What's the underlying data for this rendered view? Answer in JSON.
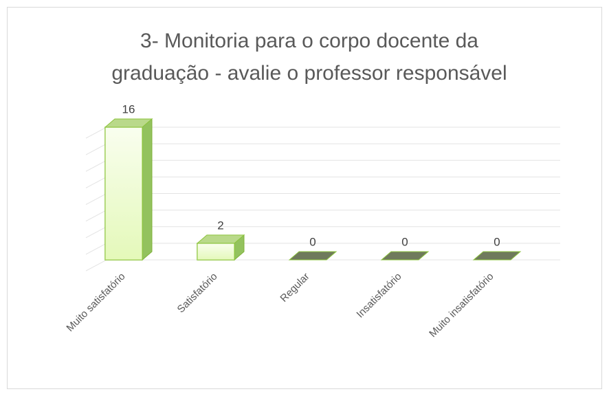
{
  "chart_data": {
    "type": "bar3d",
    "title": [
      "3- Monitoria para o corpo docente da",
      "graduação - avalie o professor responsável"
    ],
    "categories": [
      "Muito satisfatório",
      "Satisfatório",
      "Regular",
      "Insatisfatório",
      "Muito insatisfatório"
    ],
    "values": [
      16,
      2,
      0,
      0,
      0
    ],
    "color": "#eefcd2",
    "ylim": [
      0,
      16
    ],
    "yticks": [
      0,
      2,
      4,
      6,
      8,
      10,
      12,
      14,
      16
    ],
    "grid": true
  }
}
